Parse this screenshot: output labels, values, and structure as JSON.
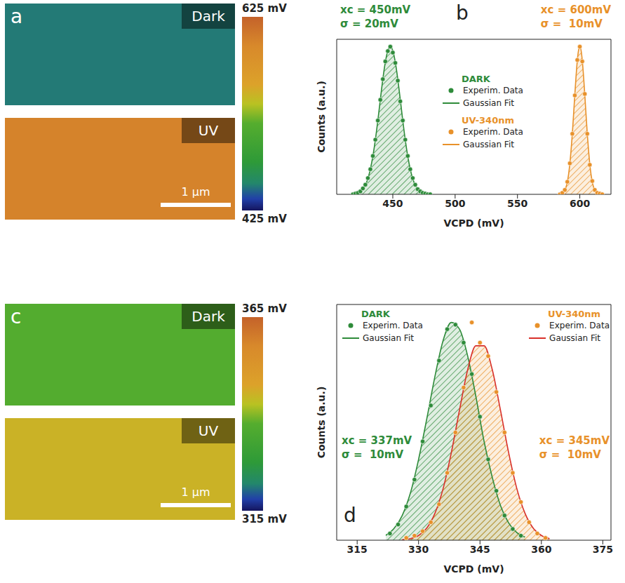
{
  "chart_data": [
    {
      "type": "map",
      "label": "a",
      "maps": [
        {
          "title": "Dark",
          "value": 450
        },
        {
          "title": "UV",
          "value": 600
        }
      ],
      "colorbar": {
        "range": [
          425,
          625
        ],
        "ticks": [
          {
            "value": 625,
            "label": "625 mV"
          },
          {
            "value": 425,
            "label": "425 mV"
          }
        ]
      },
      "scale_bar": "1 µm"
    },
    {
      "type": "scatter",
      "label": "b",
      "x_label": "VCPD (mV)",
      "y_label": "Counts (a.u.)",
      "xlim": [
        405,
        625
      ],
      "xticks": [
        450,
        500,
        550,
        600
      ],
      "ylim": [
        0,
        1.05
      ],
      "tick_labels": "x",
      "legend": "center",
      "groups": [
        {
          "name": "DARK",
          "color": "#2e8b3a",
          "annotations": [
            "xc = 450mV",
            "σ = 20mV"
          ],
          "series": [
            {
              "name": "Experim. Data",
              "type": "scatter",
              "marker": "circle",
              "color": "#2e8b3a",
              "x": [
                418,
                420,
                422,
                424,
                426,
                428,
                430,
                432,
                434,
                436,
                438,
                440,
                442,
                444,
                446,
                448,
                450,
                452,
                454,
                456,
                458,
                460,
                462,
                464,
                466,
                468,
                470,
                472,
                474,
                476,
                478,
                480
              ],
              "values": [
                0.0,
                0.005,
                0.01,
                0.02,
                0.04,
                0.065,
                0.11,
                0.17,
                0.26,
                0.37,
                0.5,
                0.64,
                0.78,
                0.9,
                0.97,
                1.0,
                0.96,
                0.89,
                0.77,
                0.63,
                0.5,
                0.37,
                0.26,
                0.17,
                0.11,
                0.065,
                0.035,
                0.02,
                0.01,
                0.005,
                0.0,
                0.0
              ]
            },
            {
              "name": "Gaussian Fit",
              "type": "area",
              "color": "#2e8b3a",
              "x": [
                418,
                420,
                422,
                424,
                426,
                428,
                430,
                432,
                434,
                436,
                438,
                440,
                442,
                444,
                446,
                448,
                450,
                452,
                454,
                456,
                458,
                460,
                462,
                464,
                466,
                468,
                470,
                472,
                474,
                476,
                478,
                480
              ],
              "values": [
                0.002,
                0.004,
                0.009,
                0.019,
                0.035,
                0.063,
                0.106,
                0.17,
                0.258,
                0.369,
                0.5,
                0.642,
                0.78,
                0.895,
                0.973,
                1,
                0.973,
                0.895,
                0.78,
                0.642,
                0.5,
                0.369,
                0.258,
                0.17,
                0.106,
                0.063,
                0.035,
                0.019,
                0.009,
                0.004,
                0.002,
                0.001
              ]
            }
          ]
        },
        {
          "name": "UV-340nm",
          "color": "#e8912a",
          "annotations": [
            "xc = 600mV",
            "σ =  10mV"
          ],
          "series": [
            {
              "name": "Experim. Data",
              "type": "scatter",
              "marker": "circle",
              "color": "#e8912a",
              "x": [
                584,
                586,
                588,
                590,
                592,
                594,
                596,
                598,
                600,
                602,
                604,
                606,
                608,
                610,
                612,
                614,
                616,
                618
              ],
              "values": [
                0.0,
                0.01,
                0.03,
                0.085,
                0.21,
                0.41,
                0.67,
                0.91,
                1.0,
                0.9,
                0.68,
                0.41,
                0.2,
                0.09,
                0.03,
                0.01,
                0.005,
                0.0
              ]
            },
            {
              "name": "Gaussian Fit",
              "type": "area",
              "color": "#e8912a",
              "x": [
                586,
                587,
                588,
                589,
                590,
                591,
                592,
                593,
                594,
                595,
                596,
                597,
                598,
                599,
                600,
                601,
                602,
                603,
                604,
                605,
                606,
                607,
                608,
                609,
                610,
                611,
                612,
                613,
                614
              ],
              "values": [
                0.008,
                0.016,
                0.029,
                0.05,
                0.085,
                0.135,
                0.206,
                0.3,
                0.41,
                0.54,
                0.674,
                0.8,
                0.906,
                0.976,
                1,
                0.976,
                0.906,
                0.8,
                0.674,
                0.54,
                0.41,
                0.3,
                0.206,
                0.135,
                0.085,
                0.05,
                0.029,
                0.016,
                0.008
              ]
            }
          ]
        }
      ]
    },
    {
      "type": "map",
      "label": "c",
      "maps": [
        {
          "title": "Dark",
          "value": 337
        },
        {
          "title": "UV",
          "value": 345
        }
      ],
      "colorbar": {
        "range": [
          315,
          365
        ],
        "ticks": [
          {
            "value": 365,
            "label": "365 mV"
          },
          {
            "value": 315,
            "label": "315 mV"
          }
        ]
      },
      "scale_bar": "1 µm"
    },
    {
      "type": "scatter",
      "label": "d",
      "x_label": "VCPD (mV)",
      "y_label": "Counts (a.u.)",
      "xlim": [
        310,
        377
      ],
      "xticks": [
        315,
        330,
        345,
        360,
        375
      ],
      "ylim": [
        0,
        1.05
      ],
      "tick_labels": "x",
      "legend": "top",
      "groups": [
        {
          "name": "DARK",
          "color": "#2e8b3a",
          "annotations": [
            "xc = 337mV",
            "σ =  10mV"
          ],
          "series": [
            {
              "name": "Experim. Data",
              "type": "scatter",
              "marker": "circle",
              "color": "#2e8b3a",
              "x": [
                323,
                325,
                327,
                329,
                331,
                333,
                335,
                337,
                339,
                341,
                343,
                345,
                347,
                349,
                351,
                353,
                355
              ],
              "values": [
                0.03,
                0.07,
                0.15,
                0.27,
                0.44,
                0.6,
                0.8,
                0.94,
                0.96,
                0.88,
                0.74,
                0.55,
                0.36,
                0.22,
                0.11,
                0.05,
                0.02
              ]
            },
            {
              "name": "Gaussian Fit",
              "type": "area",
              "color": "#2e8b3a",
              "x": [
                322,
                324,
                326,
                328,
                330,
                332,
                334,
                336,
                338,
                340,
                342,
                344,
                346,
                348,
                350,
                352,
                354,
                356
              ],
              "values": [
                0.022,
                0.052,
                0.11,
                0.21,
                0.36,
                0.54,
                0.73,
                0.89,
                0.97,
                0.94,
                0.82,
                0.64,
                0.44,
                0.28,
                0.155,
                0.077,
                0.034,
                0.014
              ]
            }
          ]
        },
        {
          "name": "UV-340nm",
          "color": "#e8912a",
          "annotations": [
            "xc = 345mV",
            "σ =  10mV"
          ],
          "series": [
            {
              "name": "Experim. Data",
              "type": "scatter",
              "marker": "circle",
              "color": "#e8912a",
              "x": [
                327,
                329,
                331,
                333,
                335,
                337,
                339,
                341,
                343,
                345,
                347,
                349,
                351,
                353,
                355,
                357,
                359,
                361
              ],
              "values": [
                0.01,
                0.02,
                0.04,
                0.08,
                0.16,
                0.3,
                0.48,
                0.68,
                0.97,
                0.88,
                0.82,
                0.66,
                0.48,
                0.3,
                0.17,
                0.08,
                0.03,
                0.01
              ]
            },
            {
              "name": "Gaussian Fit",
              "type": "area",
              "color": "#d8302a",
              "x": [
                326,
                328,
                330,
                332,
                334,
                336,
                338,
                340,
                342,
                344,
                346,
                348,
                350,
                352,
                354,
                356,
                358,
                360,
                362
              ],
              "values": [
                0.002,
                0.007,
                0.021,
                0.054,
                0.12,
                0.23,
                0.39,
                0.58,
                0.76,
                0.866,
                0.866,
                0.76,
                0.58,
                0.39,
                0.23,
                0.12,
                0.054,
                0.021,
                0.007
              ]
            }
          ]
        }
      ]
    }
  ]
}
